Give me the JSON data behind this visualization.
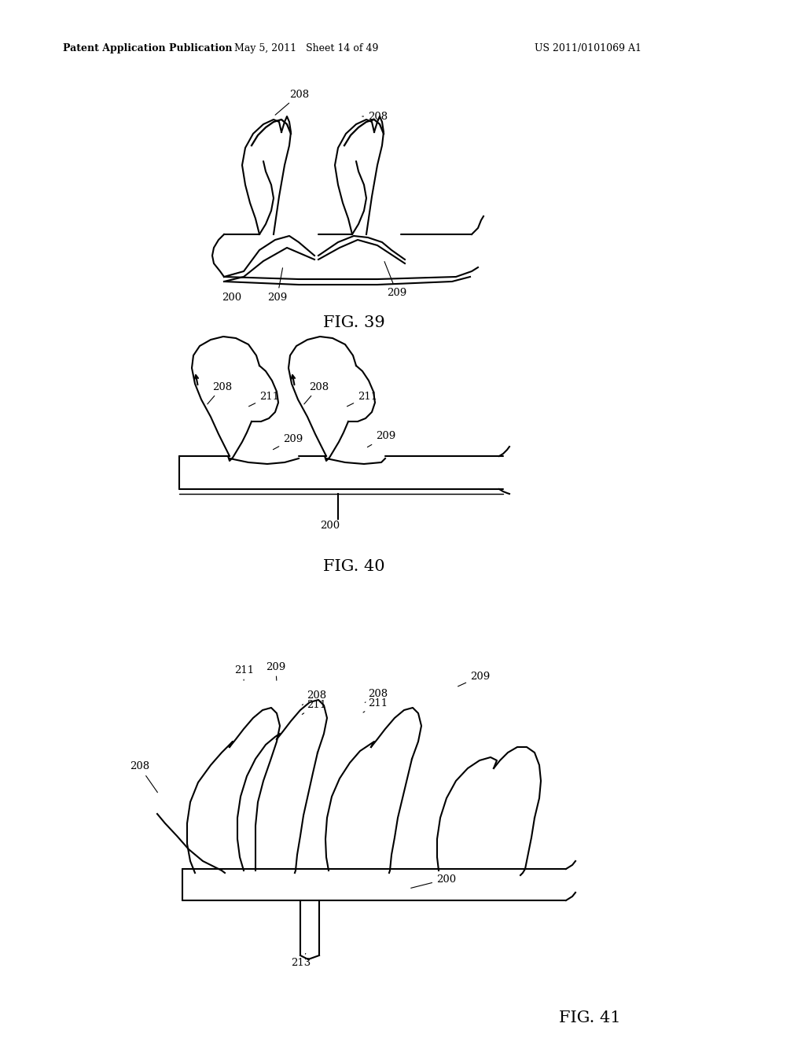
{
  "bg_color": "#ffffff",
  "text_color": "#000000",
  "line_color": "#000000",
  "header_left": "Patent Application Publication",
  "header_center": "May 5, 2011   Sheet 14 of 49",
  "header_right": "US 2011/0101069 A1",
  "fig39_label": "FIG. 39",
  "fig40_label": "FIG. 40",
  "fig41_label": "FIG. 41",
  "lw": 1.5,
  "fs_ref": 9.5,
  "fs_fig": 15
}
